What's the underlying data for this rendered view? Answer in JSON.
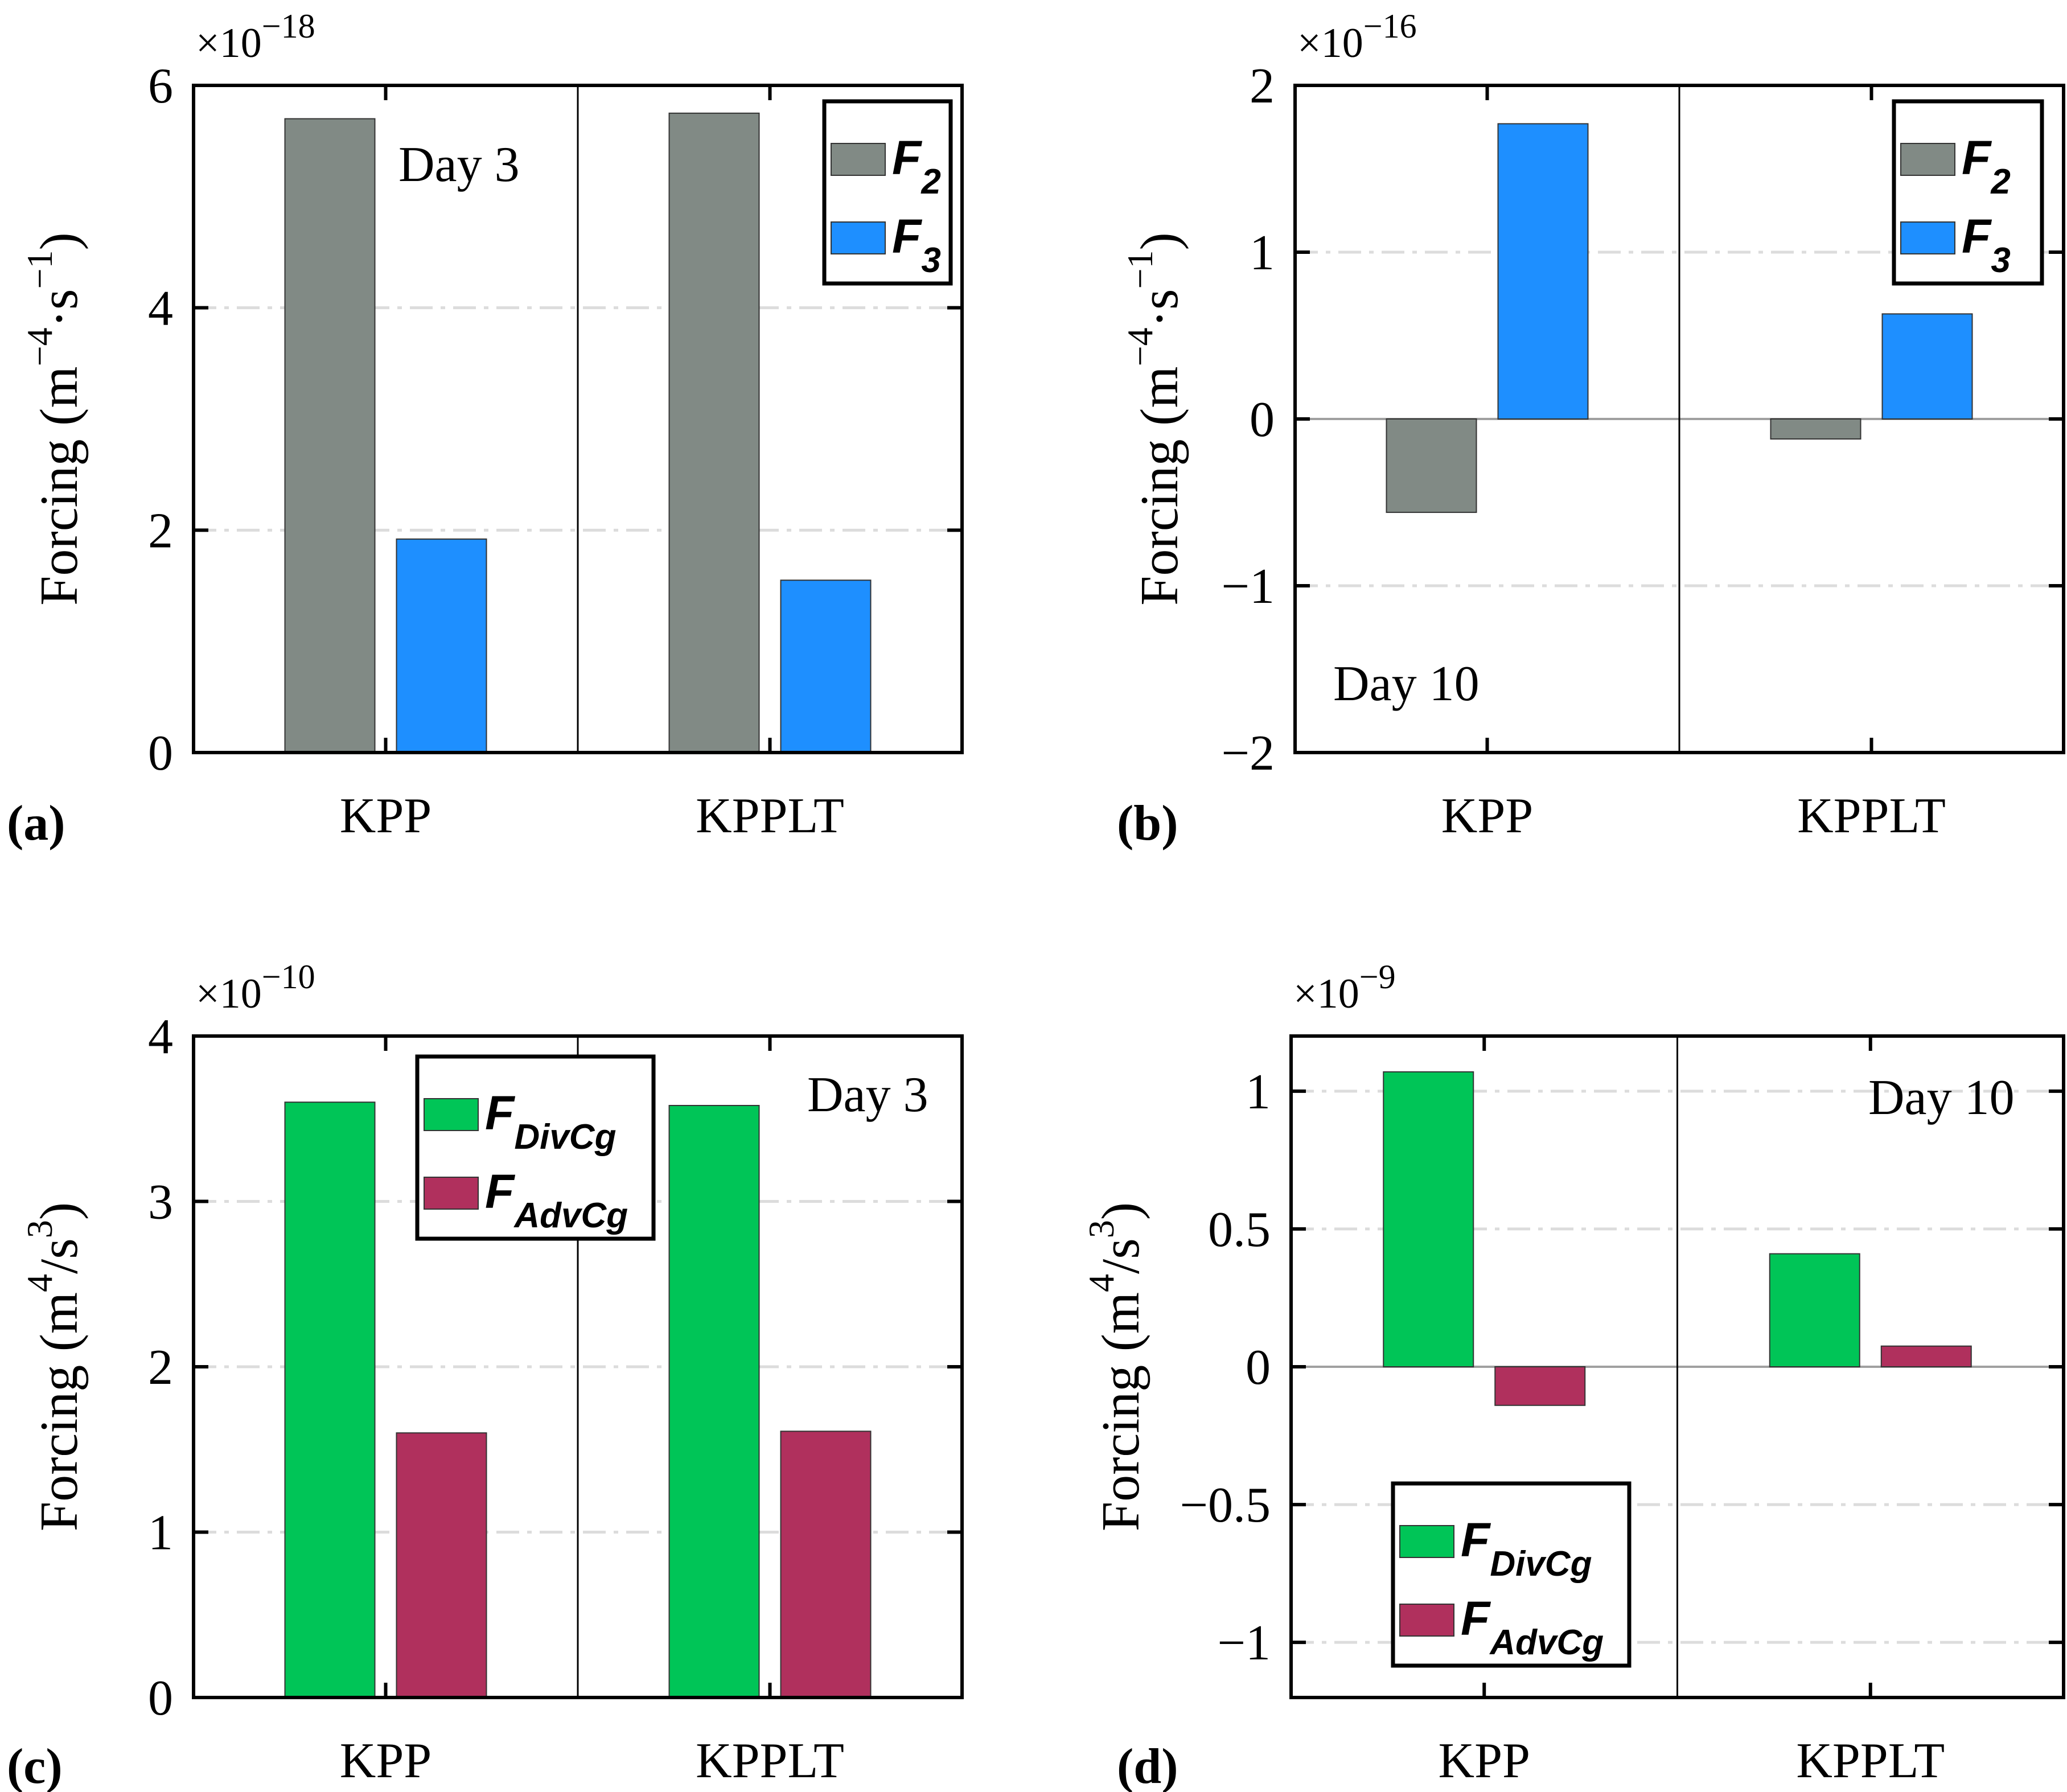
{
  "colors": {
    "F2": "#818a85",
    "F3": "#1e8fff",
    "FDivCg": "#00c557",
    "FAdvCg": "#b0305d"
  },
  "chart_data": [
    {
      "id": "a",
      "type": "bar",
      "panel_label": "(a)",
      "annotation": "Day 3",
      "categories": [
        "KPP",
        "KPPLT"
      ],
      "series": [
        {
          "name": "F",
          "subscript": "2",
          "color_key": "F2",
          "values": [
            5.7,
            5.75
          ]
        },
        {
          "name": "F",
          "subscript": "3",
          "color_key": "F3",
          "values": [
            1.92,
            1.55
          ]
        }
      ],
      "ylabel": "Forcing (m",
      "ylabel_sup": "−4",
      "ylabel_mid": "·s",
      "ylabel_sup2": "−1",
      "ylabel_end": ")",
      "exponent_base": "×10",
      "exponent": "−18",
      "ylim": [
        0,
        6
      ],
      "yticks": [
        0,
        2,
        4,
        6
      ],
      "ytick_labels": [
        "0",
        "2",
        "4",
        "6"
      ],
      "legend": "top-right"
    },
    {
      "id": "b",
      "type": "bar",
      "panel_label": "(b)",
      "annotation": "Day 10",
      "categories": [
        "KPP",
        "KPPLT"
      ],
      "series": [
        {
          "name": "F",
          "subscript": "2",
          "color_key": "F2",
          "values": [
            -0.56,
            -0.12
          ]
        },
        {
          "name": "F",
          "subscript": "3",
          "color_key": "F3",
          "values": [
            1.77,
            0.63
          ]
        }
      ],
      "ylabel": "Forcing (m",
      "ylabel_sup": "−4",
      "ylabel_mid": "·s",
      "ylabel_sup2": "−1",
      "ylabel_end": ")",
      "exponent_base": "×10",
      "exponent": "−16",
      "ylim": [
        -2,
        2
      ],
      "yticks": [
        -2,
        -1,
        0,
        1,
        2
      ],
      "ytick_labels": [
        "−2",
        "−1",
        "0",
        "1",
        "2"
      ],
      "legend": "top-right"
    },
    {
      "id": "c",
      "type": "bar",
      "panel_label": "(c)",
      "annotation": "Day 3",
      "categories": [
        "KPP",
        "KPPLT"
      ],
      "series": [
        {
          "name": "F",
          "subscript": "DivCg",
          "color_key": "FDivCg",
          "values": [
            3.6,
            3.58
          ]
        },
        {
          "name": "F",
          "subscript": "AdvCg",
          "color_key": "FAdvCg",
          "values": [
            1.6,
            1.61
          ]
        }
      ],
      "ylabel": "Forcing (m",
      "ylabel_sup": "4",
      "ylabel_mid": "/s",
      "ylabel_sup2": "3",
      "ylabel_end": ")",
      "exponent_base": "×10",
      "exponent": "−10",
      "ylim": [
        0,
        4
      ],
      "yticks": [
        0,
        1,
        2,
        3,
        4
      ],
      "ytick_labels": [
        "0",
        "1",
        "2",
        "3",
        "4"
      ],
      "legend": "top-center"
    },
    {
      "id": "d",
      "type": "bar",
      "panel_label": "(d)",
      "annotation": "Day 10",
      "categories": [
        "KPP",
        "KPPLT"
      ],
      "series": [
        {
          "name": "F",
          "subscript": "DivCg",
          "color_key": "FDivCg",
          "values": [
            1.07,
            0.41
          ]
        },
        {
          "name": "F",
          "subscript": "AdvCg",
          "color_key": "FAdvCg",
          "values": [
            -0.14,
            0.075
          ]
        }
      ],
      "ylabel": "Forcing (m",
      "ylabel_sup": "4",
      "ylabel_mid": "/s",
      "ylabel_sup2": "3",
      "ylabel_end": ")",
      "exponent_base": "×10",
      "exponent": "−9",
      "ylim": [
        -1.2,
        1.2
      ],
      "yticks": [
        -1,
        -0.5,
        0,
        0.5,
        1
      ],
      "ytick_labels": [
        "−1",
        "−0.5",
        "0",
        "0.5",
        "1"
      ],
      "legend": "bottom-left"
    }
  ]
}
